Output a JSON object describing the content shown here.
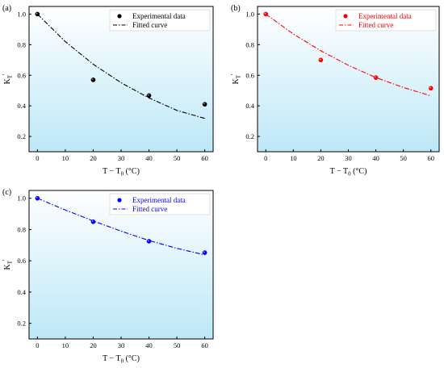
{
  "figure": {
    "colors": {
      "background_top": "#ffffff",
      "background_bottom": "#bde8f7",
      "axis": "#000000"
    }
  },
  "chart_data": [
    {
      "panel_label": "(a)",
      "type": "scatter",
      "color": "#000000",
      "xlabel": "T − T0 (°C)",
      "xlabel_parts": [
        "T − T",
        "0",
        " (°C)"
      ],
      "ylabel_parts": [
        "K",
        "T",
        "'"
      ],
      "xlim": [
        -3,
        63
      ],
      "ylim": [
        0.1,
        1.05
      ],
      "xticks": [
        0,
        10,
        20,
        30,
        40,
        50,
        60
      ],
      "yticks": [
        0.2,
        0.4,
        0.6,
        0.8,
        1.0
      ],
      "ytick_labels": [
        "0.2",
        "0.4",
        "0.6",
        "0.8",
        "1.0"
      ],
      "legend_position": "top-right",
      "grid": false,
      "series": [
        {
          "name": "Experimental data",
          "kind": "points",
          "x": [
            0,
            20,
            40,
            60
          ],
          "y": [
            1.0,
            0.57,
            0.467,
            0.41
          ]
        },
        {
          "name": "Fitted curve",
          "kind": "curve",
          "style": "dash-dot",
          "x": [
            0,
            10,
            20,
            30,
            40,
            50,
            60
          ],
          "y": [
            1.0,
            0.82,
            0.672,
            0.551,
            0.452,
            0.37,
            0.318
          ]
        }
      ]
    },
    {
      "panel_label": "(b)",
      "type": "scatter",
      "color": "#ff0000",
      "xlabel": "T − T0 (°C)",
      "xlabel_parts": [
        "T − T",
        "0",
        " (°C)"
      ],
      "ylabel_parts": [
        "K",
        "T",
        "'"
      ],
      "xlim": [
        -3,
        63
      ],
      "ylim": [
        0.1,
        1.05
      ],
      "xticks": [
        0,
        10,
        20,
        30,
        40,
        50,
        60
      ],
      "yticks": [
        0.2,
        0.4,
        0.6,
        0.8,
        1.0
      ],
      "ytick_labels": [
        "0.2",
        "0.4",
        "0.6",
        "0.8",
        "1.0"
      ],
      "legend_position": "top-right",
      "grid": false,
      "series": [
        {
          "name": "Experimental data",
          "kind": "points",
          "x": [
            0,
            20,
            40,
            60
          ],
          "y": [
            1.0,
            0.7,
            0.585,
            0.515
          ]
        },
        {
          "name": "Fitted curve",
          "kind": "curve",
          "style": "dash-dot",
          "x": [
            0,
            10,
            20,
            30,
            40,
            50,
            60
          ],
          "y": [
            1.0,
            0.87,
            0.76,
            0.665,
            0.585,
            0.52,
            0.465
          ]
        }
      ]
    },
    {
      "panel_label": "(c)",
      "type": "scatter",
      "color": "#0000ff",
      "xlabel": "T − T0 (°C)",
      "xlabel_parts": [
        "T − T",
        "0",
        " (°C)"
      ],
      "ylabel_parts": [
        "K",
        "T",
        "'"
      ],
      "xlim": [
        -3,
        63
      ],
      "ylim": [
        0.1,
        1.05
      ],
      "xticks": [
        0,
        10,
        20,
        30,
        40,
        50,
        60
      ],
      "yticks": [
        0.2,
        0.4,
        0.6,
        0.8,
        1.0
      ],
      "ytick_labels": [
        "0.2",
        "0.4",
        "0.6",
        "0.8",
        "1.0"
      ],
      "legend_position": "top-right",
      "grid": false,
      "series": [
        {
          "name": "Experimental data",
          "kind": "points",
          "x": [
            0,
            20,
            40,
            60
          ],
          "y": [
            1.0,
            0.85,
            0.725,
            0.652
          ]
        },
        {
          "name": "Fitted curve",
          "kind": "curve",
          "style": "dash-dot",
          "x": [
            0,
            10,
            20,
            30,
            40,
            50,
            60
          ],
          "y": [
            1.0,
            0.925,
            0.855,
            0.79,
            0.73,
            0.68,
            0.638
          ]
        }
      ]
    }
  ]
}
